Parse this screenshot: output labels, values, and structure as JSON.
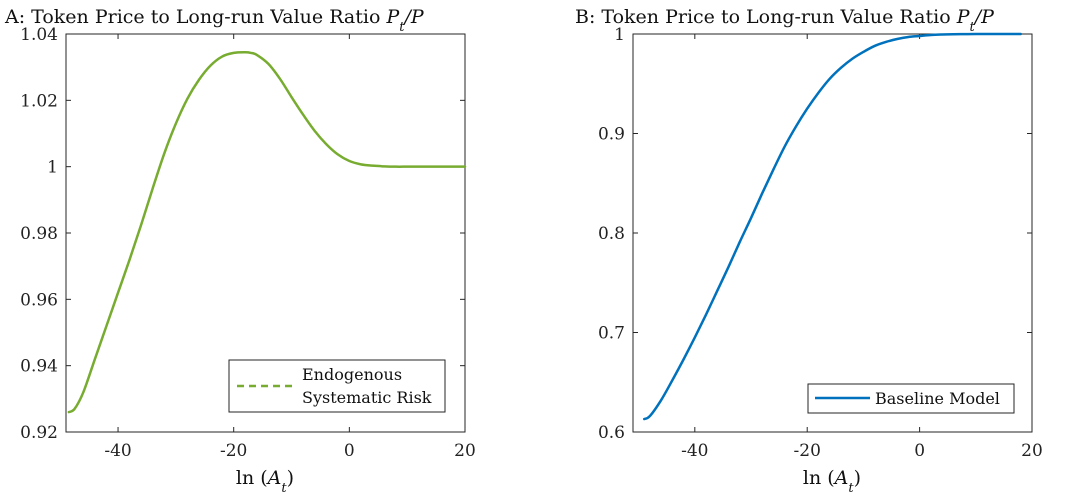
{
  "chart_data": [
    {
      "type": "line",
      "title": "A: Token Price to Long-run Value Ratio P_t/P",
      "title_parts": {
        "text": "A: Token Price to Long-run Value Ratio ",
        "p": "P",
        "sub": "t",
        "tail": "/P"
      },
      "xlabel": "ln (A_t)",
      "xlabel_parts": {
        "fn": "ln",
        "open": "(",
        "var": "A",
        "sub": "t",
        "close": ")"
      },
      "ylabel": "",
      "xlim": [
        -49,
        20
      ],
      "ylim": [
        0.92,
        1.04
      ],
      "xticks": [
        -40,
        -20,
        0,
        20
      ],
      "xtick_labels": [
        "-40",
        "-20",
        "0",
        "20"
      ],
      "yticks": [
        0.92,
        0.94,
        0.96,
        0.98,
        1.0,
        1.02,
        1.04
      ],
      "ytick_labels": [
        "0.92",
        "0.94",
        "0.96",
        "0.98",
        "1",
        "1.02",
        "1.04"
      ],
      "grid": false,
      "legend_position": "bottom-right",
      "series": [
        {
          "name": "Endogenous Systematic Risk",
          "legend_lines": [
            "Endogenous",
            "Systematic Risk"
          ],
          "color": "#77ac30",
          "style": "dashed",
          "x": [
            -48.5,
            -47.5,
            -46,
            -44,
            -42,
            -40,
            -38,
            -36,
            -34,
            -32,
            -30,
            -28,
            -26,
            -24,
            -22,
            -20,
            -18,
            -17,
            -16,
            -14,
            -12,
            -10,
            -8,
            -6,
            -4,
            -2,
            0,
            2,
            4,
            6,
            8,
            10,
            12,
            14,
            16,
            18,
            20
          ],
          "y": [
            0.926,
            0.927,
            0.932,
            0.942,
            0.952,
            0.962,
            0.972,
            0.9825,
            0.9935,
            1.004,
            1.013,
            1.0205,
            1.0262,
            1.0305,
            1.0332,
            1.0343,
            1.0345,
            1.0343,
            1.0337,
            1.031,
            1.0265,
            1.021,
            1.0157,
            1.0108,
            1.0068,
            1.0037,
            1.0017,
            1.0007,
            1.0003,
            1.0001,
            1.0,
            1.0,
            1.0,
            1.0,
            1.0,
            1.0,
            1.0
          ]
        }
      ]
    },
    {
      "type": "line",
      "title": "B: Token Price to Long-run Value Ratio P_t/P",
      "title_parts": {
        "text": "B: Token Price to Long-run Value Ratio ",
        "p": "P",
        "sub": "t",
        "tail": "/P"
      },
      "xlabel": "ln (A_t)",
      "xlabel_parts": {
        "fn": "ln",
        "open": "(",
        "var": "A",
        "sub": "t",
        "close": ")"
      },
      "ylabel": "",
      "xlim": [
        -51,
        20
      ],
      "ylim": [
        0.6,
        1.0
      ],
      "xticks": [
        -40,
        -20,
        0,
        20
      ],
      "xtick_labels": [
        "-40",
        "-20",
        "0",
        "20"
      ],
      "yticks": [
        0.6,
        0.7,
        0.8,
        0.9,
        1.0
      ],
      "ytick_labels": [
        "0.6",
        "0.7",
        "0.8",
        "0.9",
        "1"
      ],
      "grid": false,
      "legend_position": "bottom-right",
      "series": [
        {
          "name": "Baseline Model",
          "legend_lines": [
            "Baseline Model"
          ],
          "color": "#0072bd",
          "style": "solid",
          "x": [
            -49,
            -48,
            -46,
            -44,
            -42,
            -40,
            -38,
            -36,
            -34,
            -32,
            -30,
            -28,
            -26,
            -24,
            -22,
            -20,
            -18,
            -16,
            -14,
            -12,
            -10,
            -8,
            -6,
            -4,
            -2,
            0,
            2,
            4,
            6,
            8,
            10,
            14,
            18
          ],
          "y": [
            0.613,
            0.616,
            0.632,
            0.652,
            0.673,
            0.695,
            0.718,
            0.742,
            0.766,
            0.791,
            0.815,
            0.84,
            0.864,
            0.887,
            0.907,
            0.925,
            0.941,
            0.955,
            0.966,
            0.975,
            0.982,
            0.988,
            0.992,
            0.995,
            0.997,
            0.998,
            0.999,
            0.9995,
            0.9998,
            0.9999,
            1.0,
            1.0,
            1.0
          ]
        }
      ]
    }
  ]
}
